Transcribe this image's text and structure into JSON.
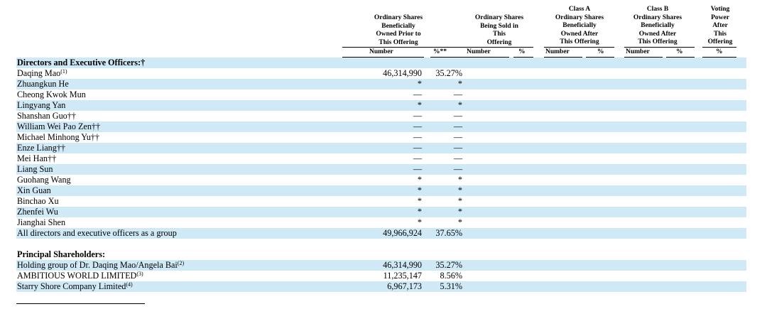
{
  "headers": {
    "prior": [
      "Ordinary Shares",
      "Beneficially",
      "Owned Prior to",
      "This Offering"
    ],
    "sold": [
      "Ordinary Shares",
      "Being Sold in",
      "This",
      "Offering"
    ],
    "classA": [
      "Class A",
      "Ordinary Shares",
      "Beneficially",
      "Owned After",
      "This Offering"
    ],
    "classB": [
      "Class B",
      "Ordinary Shares",
      "Beneficially",
      "Owned After",
      "This Offering"
    ],
    "voting": [
      "Voting",
      "Power",
      "After",
      "This",
      "Offering"
    ]
  },
  "subheaders": {
    "number": "Number",
    "pct_prior": "%**",
    "pct": "%"
  },
  "sections": {
    "directors": "Directors and Executive Officers:†",
    "principal": "Principal Shareholders:"
  },
  "directors": [
    {
      "name": "Daqing Mao",
      "sup": "(1)",
      "number": "46,314,990",
      "pct": "35.27%"
    },
    {
      "name": "Zhuangkun He",
      "sup": "",
      "number": "*",
      "pct": "*"
    },
    {
      "name": "Cheong Kwok Mun",
      "sup": "",
      "number": "—",
      "pct": "—"
    },
    {
      "name": "Lingyang Yan",
      "sup": "",
      "number": "*",
      "pct": "*"
    },
    {
      "name": "Shanshan Guo††",
      "sup": "",
      "number": "—",
      "pct": "—"
    },
    {
      "name": "William Wei Pao Zen††",
      "sup": "",
      "number": "—",
      "pct": "—"
    },
    {
      "name": "Michael Minhong Yu††",
      "sup": "",
      "number": "—",
      "pct": "—"
    },
    {
      "name": "Enze Liang††",
      "sup": "",
      "number": "—",
      "pct": "—"
    },
    {
      "name": "Mei Han††",
      "sup": "",
      "number": "—",
      "pct": "—"
    },
    {
      "name": "Liang Sun",
      "sup": "",
      "number": "—",
      "pct": "—"
    },
    {
      "name": "Guohang Wang",
      "sup": "",
      "number": "*",
      "pct": "*"
    },
    {
      "name": "Xin Guan",
      "sup": "",
      "number": "*",
      "pct": "*"
    },
    {
      "name": "Binchao Xu",
      "sup": "",
      "number": "*",
      "pct": "*"
    },
    {
      "name": "Zhenfei Wu",
      "sup": "",
      "number": "*",
      "pct": "*"
    },
    {
      "name": "Jianghai Shen",
      "sup": "",
      "number": "*",
      "pct": "*"
    },
    {
      "name": "All directors and executive officers as a group",
      "sup": "",
      "number": "49,966,924",
      "pct": "37.65%"
    }
  ],
  "principal": [
    {
      "name": "Holding group of Dr. Daqing Mao/Angela Bai",
      "sup": "(2)",
      "number": "46,314,990",
      "pct": "35.27%"
    },
    {
      "name": "AMBITIOUS WORLD LIMITED",
      "sup": "(3)",
      "number": "11,235,147",
      "pct": "8.56%"
    },
    {
      "name": "Starry Shore Company Limited",
      "sup": "(4)",
      "number": "6,967,173",
      "pct": "5.31%"
    }
  ]
}
